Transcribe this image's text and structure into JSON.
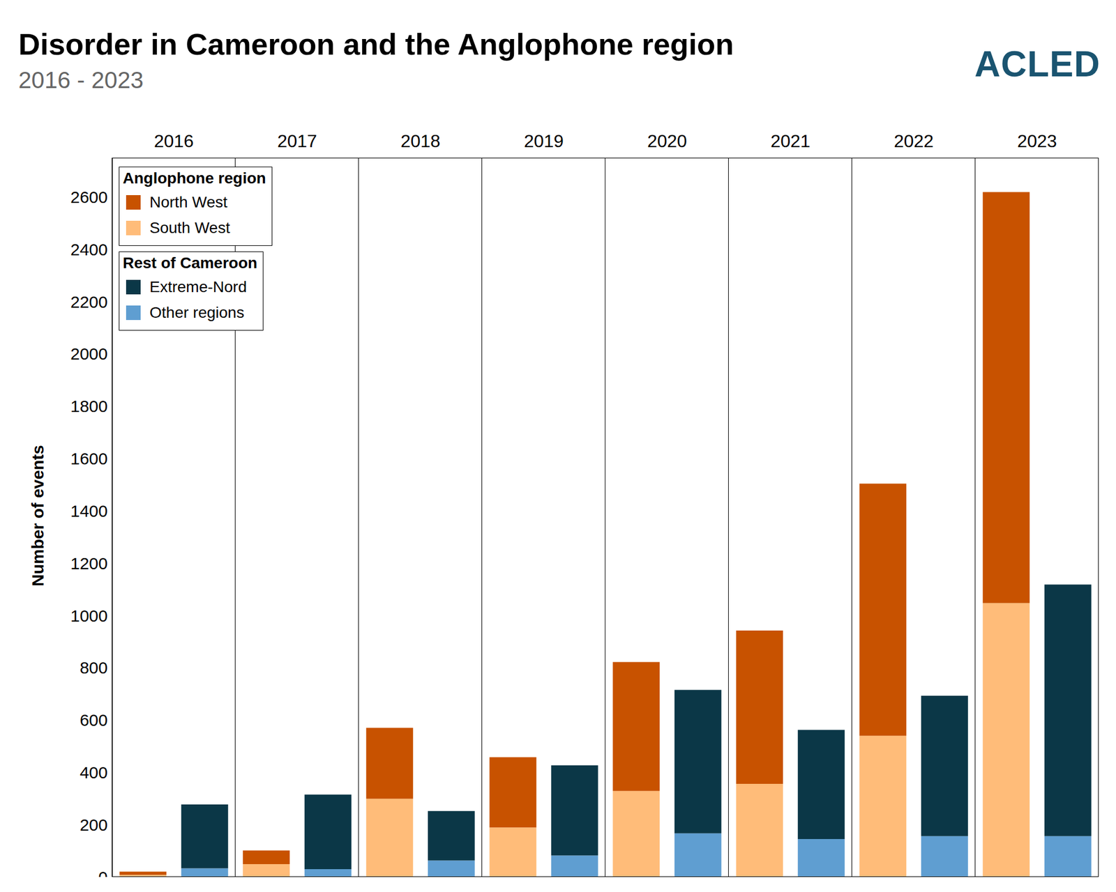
{
  "chart_data": {
    "type": "bar",
    "title": "Disorder in Cameroon and the Anglophone region",
    "subtitle": "2016 - 2023",
    "source": "ACLED",
    "y_label": "Number of events",
    "stacked": true,
    "legend": "upper left",
    "categories": [
      "2016",
      "2017",
      "2018",
      "2019",
      "2020",
      "2021",
      "2022",
      "2023"
    ],
    "ylim": [
      0,
      2750
    ],
    "yticks": [
      0,
      200,
      400,
      600,
      800,
      1000,
      1200,
      1400,
      1600,
      1800,
      2000,
      2200,
      2400,
      2600
    ],
    "groups": [
      {
        "name": "Anglophone region",
        "series": [
          {
            "name": "North West",
            "color": "#c85200",
            "values": [
              12,
              52,
              271,
              269,
              493,
              586,
              964,
              1572
            ]
          },
          {
            "name": "South West",
            "color": "#ffbc79",
            "values": [
              8,
              49,
              299,
              189,
              329,
              356,
              540,
              1047
            ]
          }
        ]
      },
      {
        "name": "Rest of Cameroon",
        "series": [
          {
            "name": "Extreme-Nord",
            "color": "#0b3747",
            "values": [
              244,
              285,
              189,
              345,
              548,
              417,
              537,
              962
            ]
          },
          {
            "name": "Other regions",
            "color": "#5f9ed1",
            "values": [
              33,
              30,
              63,
              82,
              167,
              145,
              156,
              156
            ]
          }
        ]
      }
    ]
  }
}
